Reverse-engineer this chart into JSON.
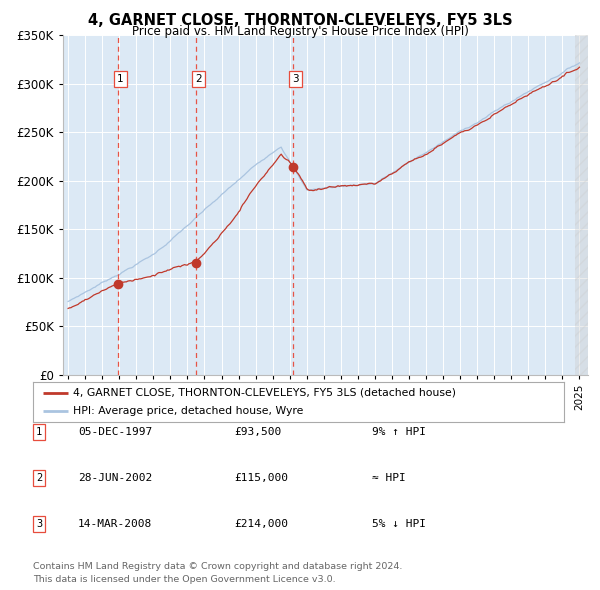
{
  "title": "4, GARNET CLOSE, THORNTON-CLEVELEYS, FY5 3LS",
  "subtitle": "Price paid vs. HM Land Registry's House Price Index (HPI)",
  "sales": [
    {
      "date_decimal": 1997.92,
      "price": 93500,
      "label": "1"
    },
    {
      "date_decimal": 2002.49,
      "price": 115000,
      "label": "2"
    },
    {
      "date_decimal": 2008.2,
      "price": 214000,
      "label": "3"
    }
  ],
  "legend_line1": "4, GARNET CLOSE, THORNTON-CLEVELEYS, FY5 3LS (detached house)",
  "legend_line2": "HPI: Average price, detached house, Wyre",
  "table_rows": [
    {
      "num": "1",
      "date": "05-DEC-1997",
      "price": "£93,500",
      "rel": "9% ↑ HPI"
    },
    {
      "num": "2",
      "date": "28-JUN-2002",
      "price": "£115,000",
      "rel": "≈ HPI"
    },
    {
      "num": "3",
      "date": "14-MAR-2008",
      "price": "£214,000",
      "rel": "5% ↓ HPI"
    }
  ],
  "footer1": "Contains HM Land Registry data © Crown copyright and database right 2024.",
  "footer2": "This data is licensed under the Open Government Licence v3.0.",
  "hpi_color": "#aac4e0",
  "property_color": "#c0392b",
  "vline_color": "#e74c3c",
  "plot_bg": "#dce9f5",
  "grid_color": "#ffffff",
  "ylim": [
    0,
    350000
  ],
  "yticks": [
    0,
    50000,
    100000,
    150000,
    200000,
    250000,
    300000,
    350000
  ],
  "ytick_labels": [
    "£0",
    "£50K",
    "£100K",
    "£150K",
    "£200K",
    "£250K",
    "£300K",
    "£350K"
  ],
  "xstart": 1994.7,
  "xend": 2025.5
}
